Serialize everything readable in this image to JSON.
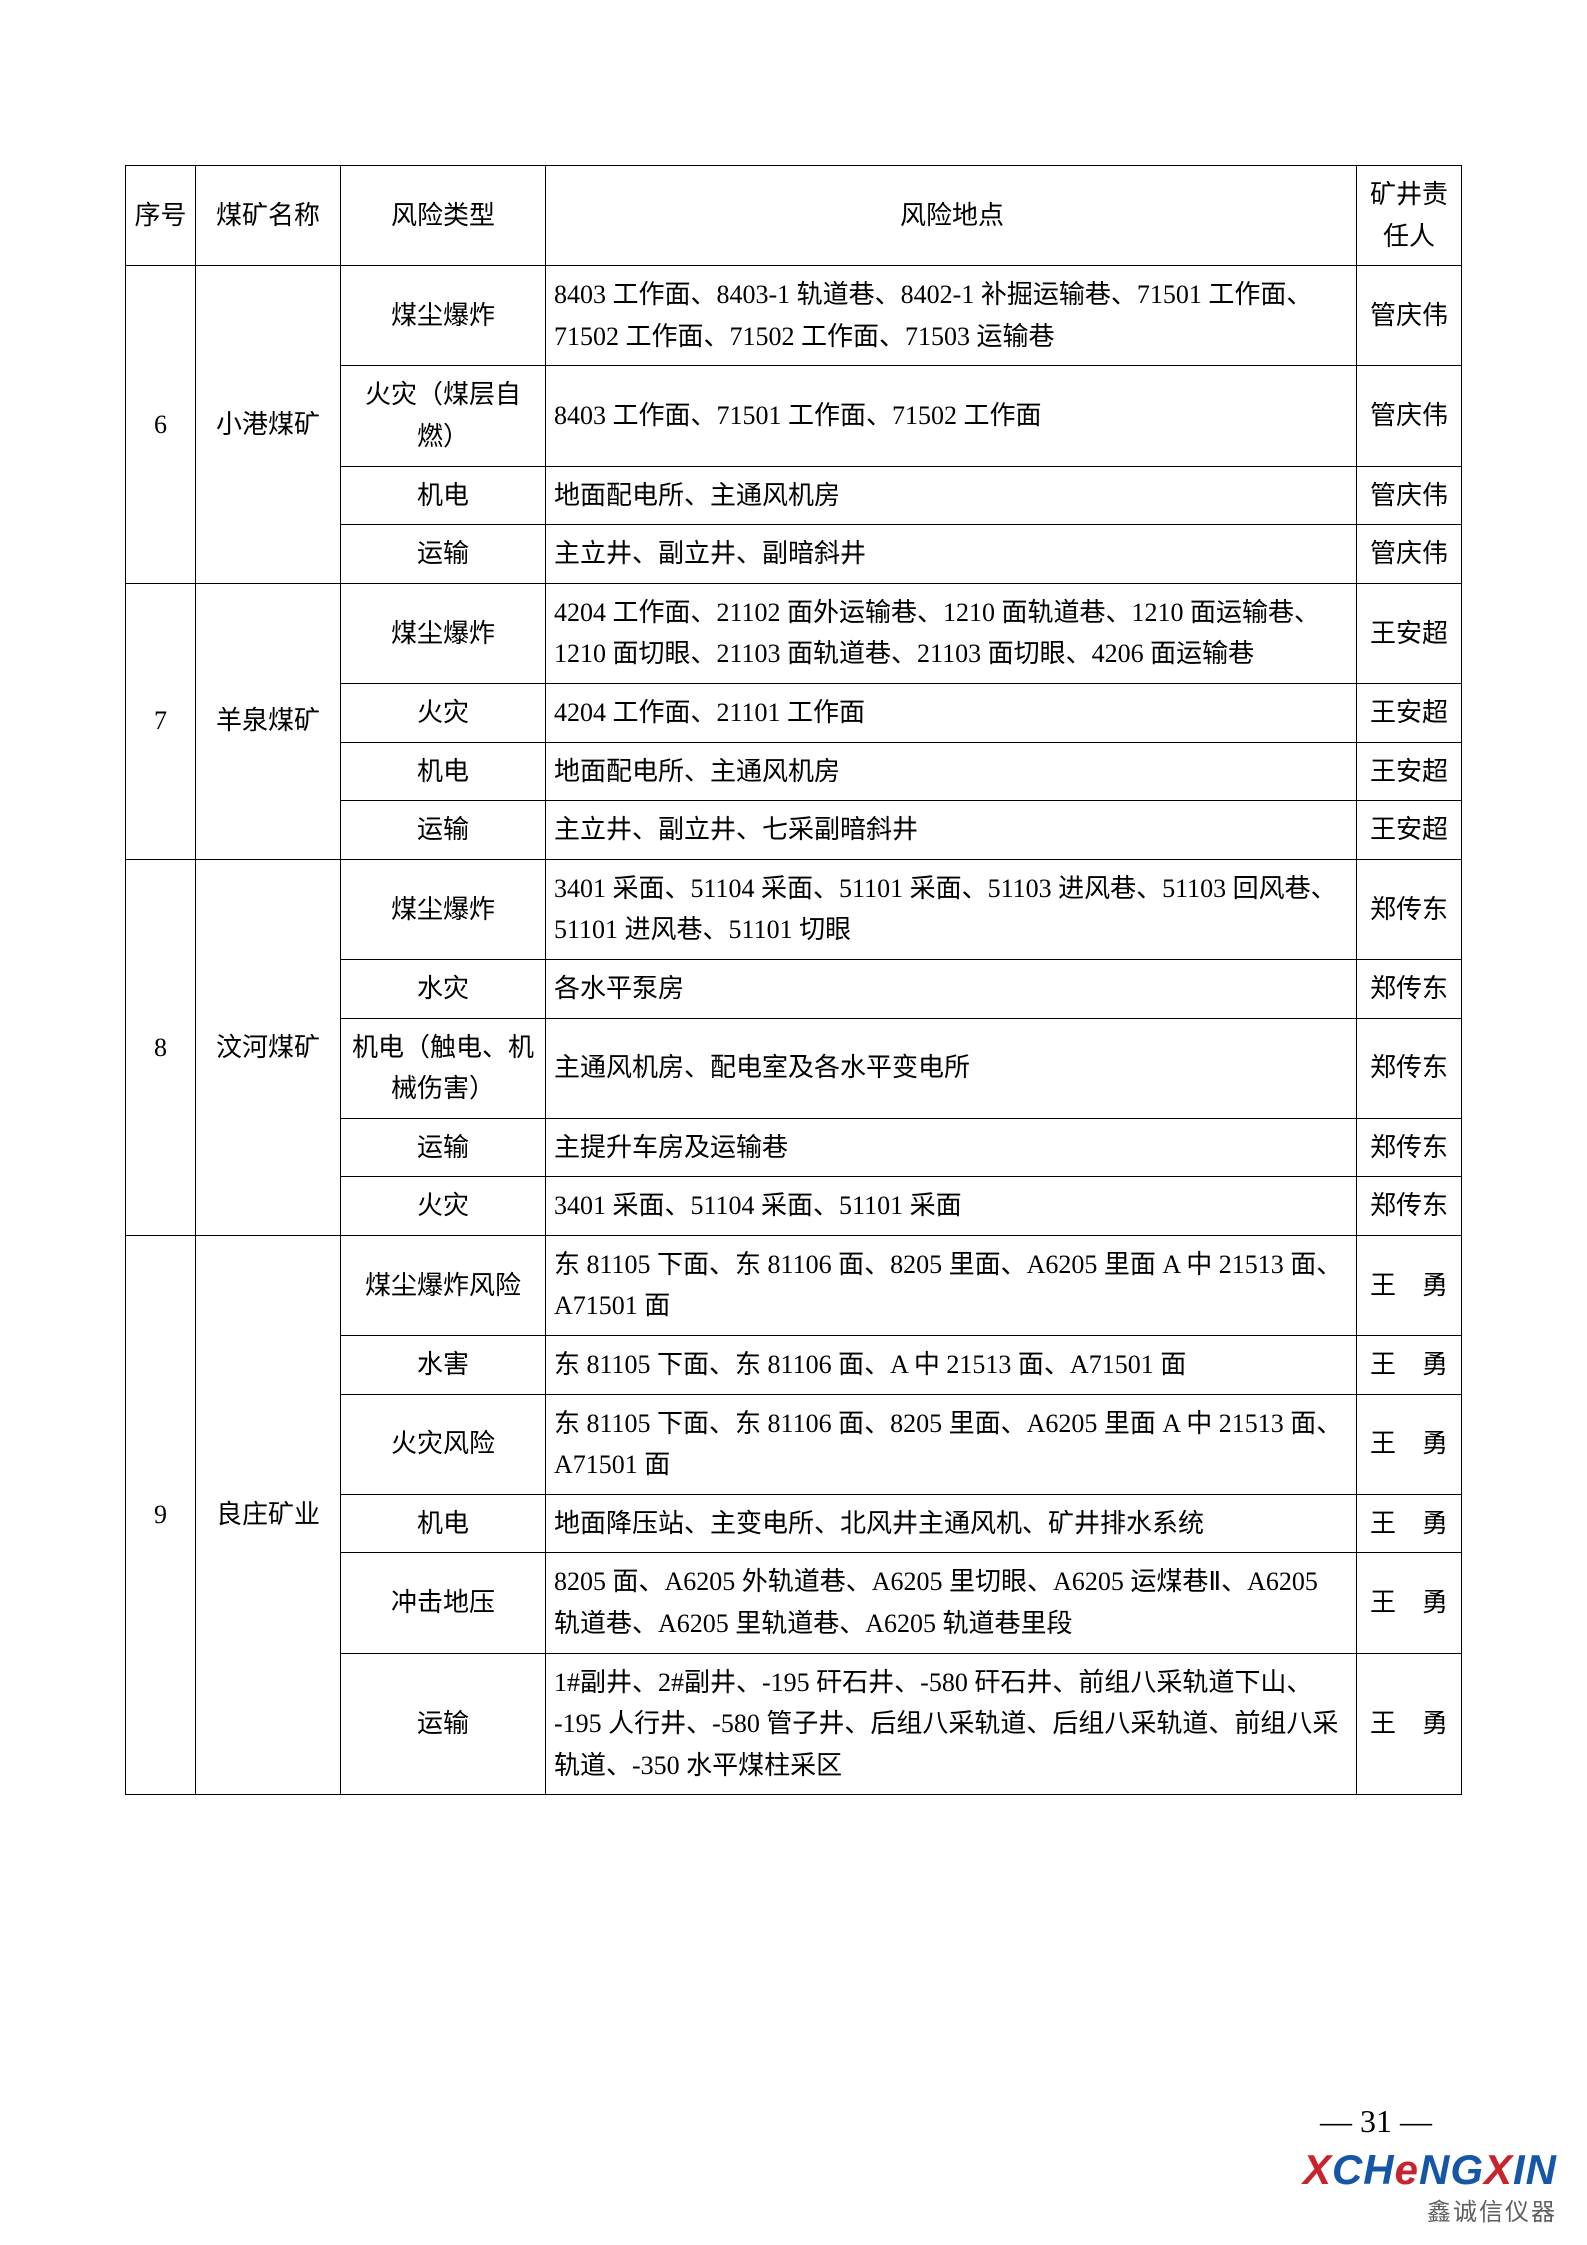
{
  "headers": {
    "seq": "序号",
    "mine": "煤矿名称",
    "type": "风险类型",
    "loc": "风险地点",
    "person": "矿井责任人"
  },
  "groups": [
    {
      "seq": "6",
      "mine": "小港煤矿",
      "rows": [
        {
          "type": "煤尘爆炸",
          "loc": "8403 工作面、8403-1 轨道巷、8402-1 补掘运输巷、71501 工作面、71502 工作面、71502 工作面、71503 运输巷",
          "person": "管庆伟"
        },
        {
          "type": "火灾（煤层自燃）",
          "loc": "8403 工作面、71501 工作面、71502 工作面",
          "person": "管庆伟"
        },
        {
          "type": "机电",
          "loc": "地面配电所、主通风机房",
          "person": "管庆伟"
        },
        {
          "type": "运输",
          "loc": "主立井、副立井、副暗斜井",
          "person": "管庆伟"
        }
      ]
    },
    {
      "seq": "7",
      "mine": "羊泉煤矿",
      "rows": [
        {
          "type": "煤尘爆炸",
          "loc": "4204 工作面、21102 面外运输巷、1210 面轨道巷、1210 面运输巷、1210 面切眼、21103 面轨道巷、21103 面切眼、4206 面运输巷",
          "person": "王安超"
        },
        {
          "type": "火灾",
          "loc": "4204 工作面、21101 工作面",
          "person": "王安超"
        },
        {
          "type": "机电",
          "loc": "地面配电所、主通风机房",
          "person": "王安超"
        },
        {
          "type": "运输",
          "loc": "主立井、副立井、七采副暗斜井",
          "person": "王安超"
        }
      ]
    },
    {
      "seq": "8",
      "mine": "汶河煤矿",
      "rows": [
        {
          "type": "煤尘爆炸",
          "loc": "3401 采面、51104 采面、51101 采面、51103 进风巷、51103 回风巷、51101 进风巷、51101 切眼",
          "person": "郑传东"
        },
        {
          "type": "水灾",
          "loc": "各水平泵房",
          "person": "郑传东"
        },
        {
          "type": "机电（触电、机械伤害）",
          "loc": "主通风机房、配电室及各水平变电所",
          "person": "郑传东"
        },
        {
          "type": "运输",
          "loc": "主提升车房及运输巷",
          "person": "郑传东"
        },
        {
          "type": "火灾",
          "loc": "3401 采面、51104 采面、51101 采面",
          "person": "郑传东"
        }
      ]
    },
    {
      "seq": "9",
      "mine": "良庄矿业",
      "rows": [
        {
          "type": "煤尘爆炸风险",
          "loc": "东 81105 下面、东 81106 面、8205 里面、A6205 里面 A 中 21513 面、A71501 面",
          "person": "王　勇"
        },
        {
          "type": "水害",
          "loc": "东 81105 下面、东 81106 面、A 中 21513 面、A71501 面",
          "person": "王　勇"
        },
        {
          "type": "火灾风险",
          "loc": "东 81105 下面、东 81106 面、8205 里面、A6205 里面 A 中 21513 面、A71501 面",
          "person": "王　勇"
        },
        {
          "type": "机电",
          "loc": "地面降压站、主变电所、北风井主通风机、矿井排水系统",
          "person": "王　勇"
        },
        {
          "type": "冲击地压",
          "loc": "8205 面、A6205 外轨道巷、A6205 里切眼、A6205 运煤巷Ⅱ、A6205 轨道巷、A6205 里轨道巷、A6205 轨道巷里段",
          "person": "王　勇"
        },
        {
          "type": "运输",
          "loc": "1#副井、2#副井、-195 矸石井、-580 矸石井、前组八采轨道下山、 -195 人行井、-580 管子井、后组八采轨道、后组八采轨道、前组八采轨道、-350 水平煤柱采区",
          "person": "王　勇"
        }
      ]
    }
  ],
  "page_num": "— 31 —",
  "watermark": {
    "main_parts": [
      "X",
      "CH",
      "e",
      "NG",
      "X",
      "IN"
    ],
    "sub": "鑫诚信仪器"
  },
  "colors": {
    "text": "#000000",
    "border": "#000000",
    "wm_red": "#c8242e",
    "wm_blue": "#1656a6",
    "wm_gray": "#5f5f5f"
  }
}
